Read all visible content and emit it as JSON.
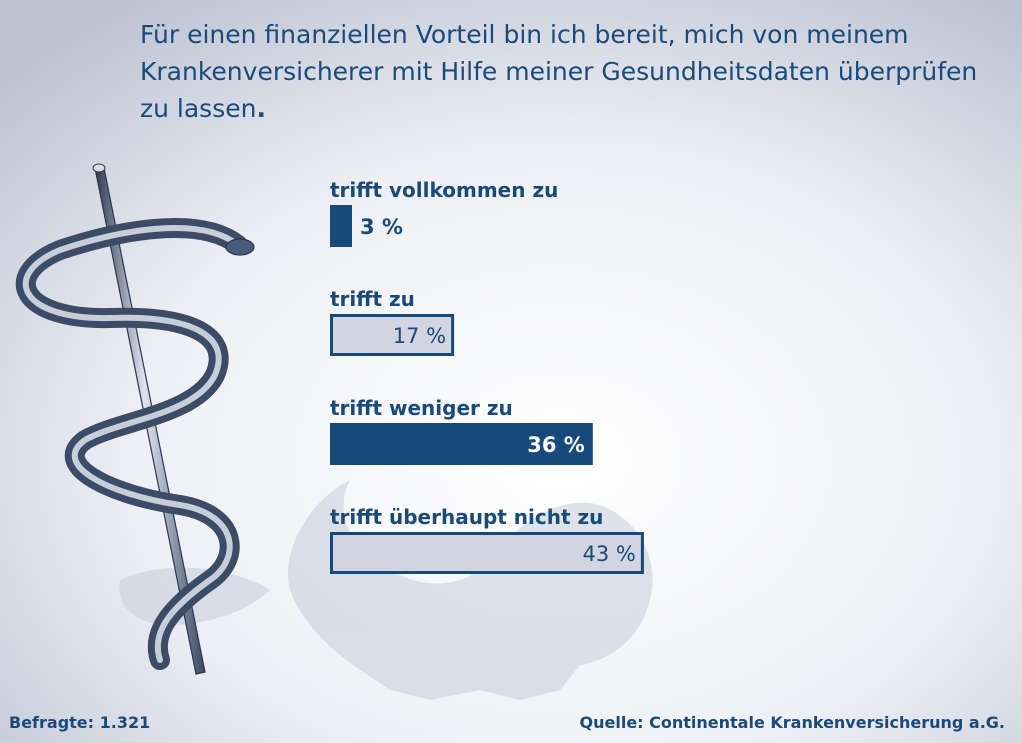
{
  "title": {
    "line1": "Für einen finanziellen Vorteil bin ich bereit, mich von meinem",
    "line2": "Krankenversicherer mit Hilfe meiner Gesundheitsdaten überprüfen",
    "line3": "zu lassen",
    "line3_end": "."
  },
  "footer": {
    "respondents": "Befragte: 1.321",
    "source": "Quelle: Continentale Krankenversicherung a.G."
  },
  "colors": {
    "dark_bar": "#174a7c",
    "light_bar": "#d2d4e2",
    "text": "#1a4a7a",
    "illustration": "#4a5f7c"
  },
  "chart_data": {
    "type": "bar",
    "orientation": "horizontal",
    "unit": "%",
    "categories": [
      "trifft vollkommen zu",
      "trifft zu",
      "trifft weniger zu",
      "trifft überhaupt nicht zu"
    ],
    "values": [
      3,
      17,
      36,
      43
    ],
    "value_labels": [
      "3 %",
      "17 %",
      "36 %",
      "43 %"
    ],
    "bar_styles": [
      "dark",
      "light",
      "dark",
      "light"
    ]
  }
}
